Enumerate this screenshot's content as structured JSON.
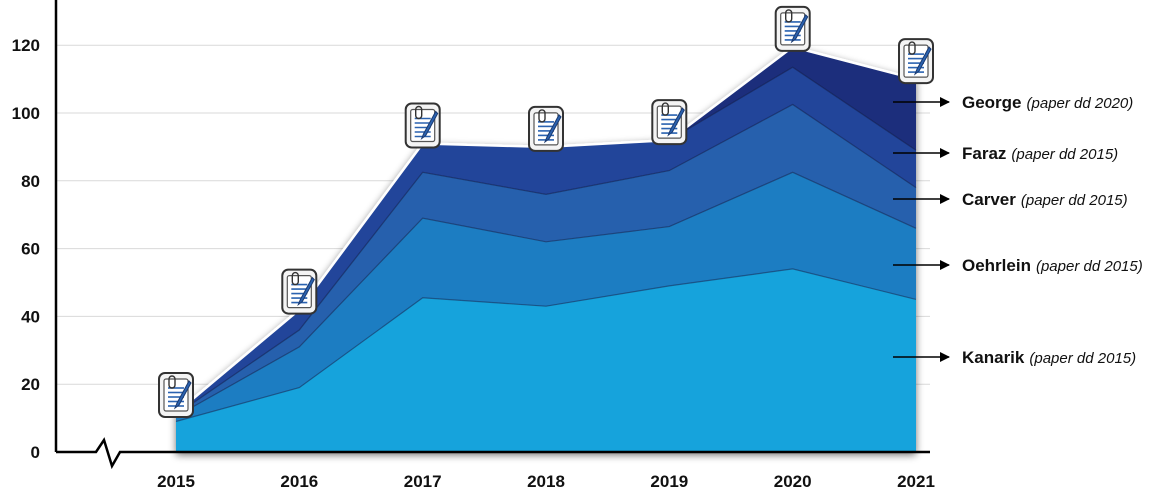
{
  "chart_data": {
    "type": "area",
    "stacked": true,
    "x": [
      "2015",
      "2016",
      "2017",
      "2018",
      "2019",
      "2020",
      "2021"
    ],
    "ylim": [
      0,
      130
    ],
    "yticks": [
      "0",
      "20",
      "40",
      "60",
      "80",
      "100",
      "120"
    ],
    "grid": true,
    "series": [
      {
        "name": "Kanarik",
        "note": "(paper dd 2015)",
        "color": "#18a3dc",
        "values": [
          9,
          19,
          45.5,
          43,
          49,
          54,
          45
        ]
      },
      {
        "name": "Oehrlein",
        "note": "(paper dd 2015)",
        "color": "#1f7dc2",
        "values": [
          1.5,
          12,
          23.5,
          19,
          17.5,
          28.5,
          21
        ]
      },
      {
        "name": "Carver",
        "note": "(paper dd 2015)",
        "color": "#2561ad",
        "values": [
          0.5,
          5,
          13.5,
          14,
          16.5,
          20,
          12
        ]
      },
      {
        "name": "Faraz",
        "note": "(paper dd 2015)",
        "color": "#22449a",
        "values": [
          0.5,
          6,
          8.5,
          14,
          9,
          11,
          11
        ]
      },
      {
        "name": "George",
        "note": "(paper dd 2020)",
        "color": "#1b2f7c",
        "values": [
          0,
          0,
          0,
          0,
          0,
          6,
          21
        ]
      }
    ],
    "markers": {
      "icon": "document-pen-icon",
      "at": [
        "2015",
        "2016",
        "2017",
        "2018",
        "2019",
        "2020",
        "2021"
      ]
    },
    "legend": "right, arrows pointing to each layer"
  }
}
